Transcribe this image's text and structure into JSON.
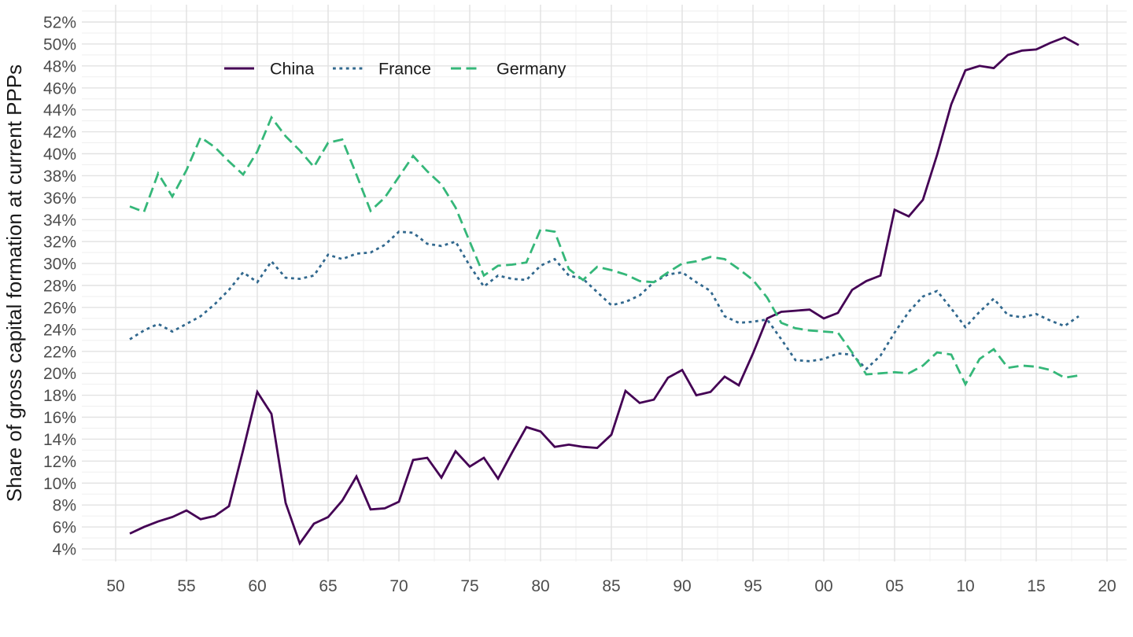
{
  "chart_data": {
    "type": "line",
    "title": "",
    "xlabel": "",
    "ylabel": "Share of gross capital formation at current PPPs",
    "legend_position": "top-inside-horizontal",
    "grid": "major+minor",
    "x_axis": {
      "tick_years": [
        1950,
        1955,
        1960,
        1965,
        1970,
        1975,
        1980,
        1985,
        1990,
        1995,
        2000,
        2005,
        2010,
        2015,
        2020
      ],
      "tick_labels": [
        "50",
        "55",
        "60",
        "65",
        "70",
        "75",
        "80",
        "85",
        "90",
        "95",
        "00",
        "05",
        "10",
        "15",
        "20"
      ],
      "range": [
        1947.5,
        2021.5
      ]
    },
    "y_axis": {
      "tick_values": [
        4,
        6,
        8,
        10,
        12,
        14,
        16,
        18,
        20,
        22,
        24,
        26,
        28,
        30,
        32,
        34,
        36,
        38,
        40,
        42,
        44,
        46,
        48,
        50,
        52
      ],
      "tick_labels": [
        "4%",
        "6%",
        "8%",
        "10%",
        "12%",
        "14%",
        "16%",
        "18%",
        "20%",
        "22%",
        "24%",
        "26%",
        "28%",
        "30%",
        "32%",
        "34%",
        "36%",
        "38%",
        "40%",
        "42%",
        "44%",
        "46%",
        "48%",
        "50%",
        "52%"
      ],
      "range": [
        3,
        53
      ],
      "unit": "percent"
    },
    "start_year": 1951,
    "end_year": 2018,
    "series": [
      {
        "name": "China",
        "color": "#440154",
        "dash": "solid",
        "values": [
          5.4,
          6.0,
          6.5,
          6.9,
          7.5,
          6.7,
          7.0,
          7.9,
          13.0,
          18.3,
          16.3,
          8.2,
          4.5,
          6.3,
          6.9,
          8.4,
          10.6,
          7.6,
          7.7,
          8.3,
          12.1,
          12.3,
          10.5,
          12.9,
          11.5,
          12.3,
          10.4,
          12.8,
          15.1,
          14.7,
          13.3,
          13.5,
          13.3,
          13.2,
          14.4,
          18.4,
          17.3,
          17.6,
          19.6,
          20.3,
          18.0,
          18.3,
          19.7,
          18.9,
          21.8,
          25.0,
          25.6,
          25.7,
          25.8,
          25.0,
          25.5,
          27.6,
          28.4,
          28.9,
          34.9,
          34.3,
          35.8,
          39.9,
          44.5,
          47.6,
          48.0,
          47.8,
          49.0,
          49.4,
          49.5,
          50.1,
          50.6,
          49.9
        ]
      },
      {
        "name": "France",
        "color": "#31688E",
        "dash": "dotted",
        "values": [
          23.1,
          23.9,
          24.5,
          23.8,
          24.5,
          25.2,
          26.3,
          27.6,
          29.2,
          28.3,
          30.2,
          28.7,
          28.6,
          28.9,
          30.8,
          30.4,
          30.9,
          31.0,
          31.7,
          32.9,
          32.8,
          31.8,
          31.6,
          32.0,
          29.8,
          27.9,
          28.9,
          28.6,
          28.5,
          29.8,
          30.4,
          28.9,
          28.6,
          27.4,
          26.2,
          26.5,
          27.1,
          28.3,
          29.0,
          29.2,
          28.3,
          27.5,
          25.2,
          24.6,
          24.7,
          24.9,
          23.1,
          21.2,
          21.1,
          21.3,
          21.8,
          21.7,
          20.4,
          21.6,
          23.7,
          25.6,
          27.0,
          27.5,
          25.9,
          24.2,
          25.6,
          26.8,
          25.3,
          25.1,
          25.4,
          24.8,
          24.3,
          25.2
        ]
      },
      {
        "name": "Germany",
        "color": "#35B779",
        "dash": "dashed",
        "values": [
          35.2,
          34.7,
          38.2,
          36.1,
          38.5,
          41.5,
          40.6,
          39.3,
          38.1,
          40.2,
          43.3,
          41.6,
          40.3,
          38.8,
          41.0,
          41.3,
          38.1,
          34.8,
          36.0,
          37.9,
          39.8,
          38.4,
          37.2,
          35.1,
          32.0,
          28.9,
          29.8,
          29.9,
          30.1,
          33.1,
          32.9,
          29.5,
          28.5,
          29.7,
          29.4,
          29.0,
          28.4,
          28.3,
          29.2,
          30.0,
          30.2,
          30.6,
          30.4,
          29.5,
          28.5,
          26.9,
          24.6,
          24.1,
          23.9,
          23.8,
          23.7,
          21.9,
          19.9,
          20.0,
          20.1,
          20.0,
          20.7,
          21.9,
          21.7,
          19.0,
          21.3,
          22.2,
          20.5,
          20.7,
          20.6,
          20.3,
          19.6,
          19.8
        ]
      }
    ]
  }
}
